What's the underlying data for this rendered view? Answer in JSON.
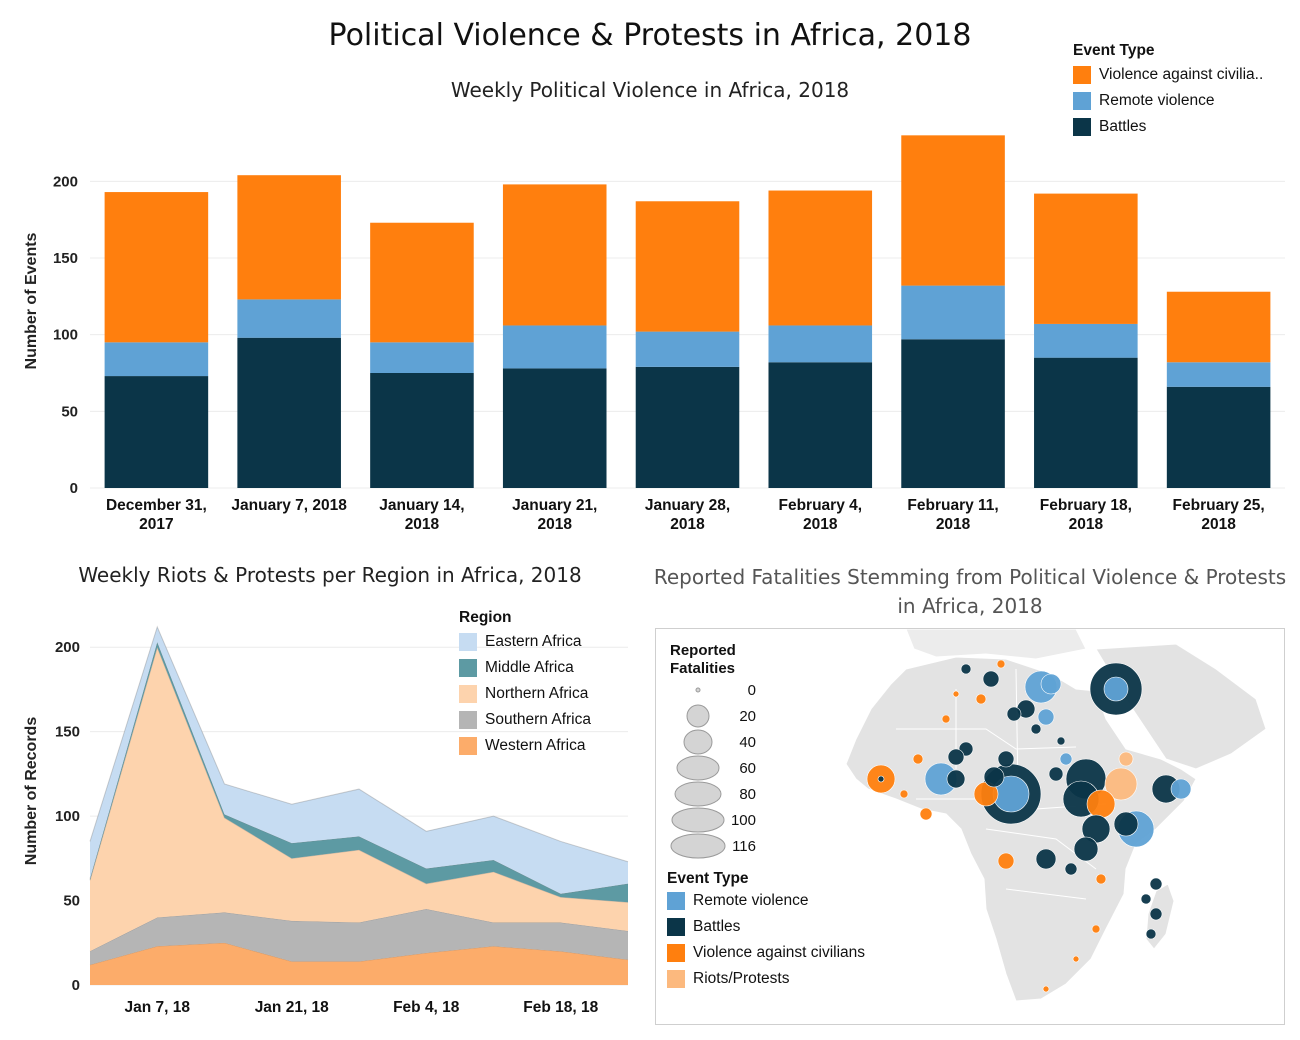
{
  "main_title": "Political Violence & Protests in Africa, 2018",
  "colors": {
    "violence_against_civilians": "#ff7f0e",
    "remote_violence": "#5fa2d5",
    "battles": "#0b3548",
    "eastern_africa": "#c6dcf2",
    "middle_africa": "#5d9aa3",
    "northern_africa": "#fdd3ad",
    "southern_africa": "#b5b5b5",
    "western_africa": "#fcac6a",
    "riots_protests": "#fcb97e"
  },
  "chart_data": [
    {
      "type": "bar",
      "title": "Weekly Political Violence in Africa, 2018",
      "ylabel": "Number of Events",
      "xlabel": "",
      "ylim": [
        0,
        240
      ],
      "yticks": [
        0,
        50,
        100,
        150,
        200
      ],
      "stacked": true,
      "categories": [
        [
          "December 31,",
          "2017"
        ],
        [
          "January 7, 2018"
        ],
        [
          "January 14,",
          "2018"
        ],
        [
          "January 21,",
          "2018"
        ],
        [
          "January 28,",
          "2018"
        ],
        [
          "February 4,",
          "2018"
        ],
        [
          "February 11,",
          "2018"
        ],
        [
          "February 18,",
          "2018"
        ],
        [
          "February 25,",
          "2018"
        ]
      ],
      "legend_title": "Event Type",
      "legend_labels": [
        "Violence against civilia..",
        "Remote violence",
        "Battles"
      ],
      "series": [
        {
          "name": "Battles",
          "color_key": "battles",
          "values": [
            73,
            98,
            75,
            78,
            79,
            82,
            97,
            85,
            66
          ]
        },
        {
          "name": "Remote violence",
          "color_key": "remote_violence",
          "values": [
            22,
            25,
            20,
            28,
            23,
            24,
            35,
            22,
            16
          ]
        },
        {
          "name": "Violence against civilians",
          "color_key": "violence_against_civilians",
          "values": [
            98,
            81,
            78,
            92,
            85,
            88,
            98,
            85,
            46
          ]
        }
      ],
      "legend_position": "top-right",
      "grid": true
    },
    {
      "type": "area",
      "title": "Weekly Riots & Protests per Region in Africa, 2018",
      "ylabel": "Number of Records",
      "xlabel": "",
      "ylim": [
        0,
        225
      ],
      "yticks": [
        0,
        50,
        100,
        150,
        200
      ],
      "stacked": true,
      "x": [
        "Dec 31, 17",
        "Jan 7, 18",
        "Jan 14, 18",
        "Jan 21, 18",
        "Jan 28, 18",
        "Feb 4, 18",
        "Feb 11, 18",
        "Feb 18, 18",
        "Feb 25, 18"
      ],
      "xtick_labels": [
        {
          "index": 1,
          "label": "Jan 7, 18"
        },
        {
          "index": 3,
          "label": "Jan 21, 18"
        },
        {
          "index": 5,
          "label": "Feb 4, 18"
        },
        {
          "index": 7,
          "label": "Feb 18, 18"
        }
      ],
      "legend_title": "Region",
      "series": [
        {
          "name": "Western Africa",
          "color_key": "western_africa",
          "values": [
            12,
            23,
            25,
            14,
            14,
            19,
            23,
            20,
            15
          ]
        },
        {
          "name": "Southern Africa",
          "color_key": "southern_africa",
          "values": [
            8,
            17,
            18,
            24,
            23,
            26,
            14,
            17,
            17
          ]
        },
        {
          "name": "Northern Africa",
          "color_key": "northern_africa",
          "values": [
            42,
            160,
            56,
            37,
            43,
            15,
            30,
            15,
            17
          ]
        },
        {
          "name": "Middle Africa",
          "color_key": "middle_africa",
          "values": [
            1,
            3,
            2,
            9,
            8,
            9,
            7,
            2,
            11
          ]
        },
        {
          "name": "Eastern Africa",
          "color_key": "eastern_africa",
          "values": [
            22,
            9,
            18,
            23,
            28,
            22,
            26,
            31,
            13
          ]
        }
      ],
      "legend_position": "top-right",
      "grid": true
    }
  ],
  "map": {
    "title": "Reported Fatalities Stemming from Political Violence & Protests in Africa, 2018",
    "size_legend_title": "Reported Fatalities",
    "size_legend_values": [
      "0",
      "20",
      "40",
      "60",
      "80",
      "100",
      "116"
    ],
    "color_legend_title": "Event Type",
    "color_legend": [
      {
        "label": "Remote violence",
        "color_key": "remote_violence"
      },
      {
        "label": "Battles",
        "color_key": "battles"
      },
      {
        "label": "Violence against civilians",
        "color_key": "violence_against_civilians"
      },
      {
        "label": "Riots/Protests",
        "color_key": "riots_protests"
      }
    ]
  }
}
